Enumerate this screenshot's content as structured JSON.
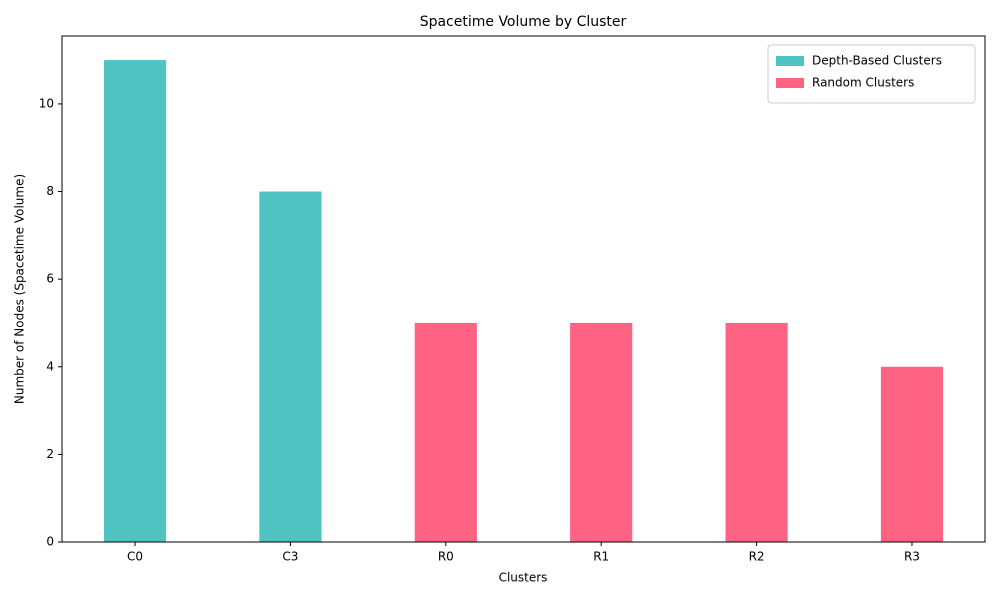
{
  "chart_data": {
    "type": "bar",
    "title": "Spacetime Volume by Cluster",
    "x_label": "Clusters",
    "y_label": "Number of Nodes (Spacetime Volume)",
    "categories": [
      "C0",
      "C3",
      "R0",
      "R1",
      "R2",
      "R3"
    ],
    "series": [
      {
        "name": "Depth-Based Clusters",
        "color": "#4ec3c1",
        "values": [
          11,
          8,
          null,
          null,
          null,
          null
        ]
      },
      {
        "name": "Random Clusters",
        "color": "#ff6384",
        "values": [
          null,
          null,
          5,
          5,
          5,
          4
        ]
      }
    ],
    "ylim": [
      0,
      11.55
    ],
    "yticks": [
      0,
      2,
      4,
      6,
      8,
      10
    ],
    "grid": false,
    "legend": "upper right"
  }
}
